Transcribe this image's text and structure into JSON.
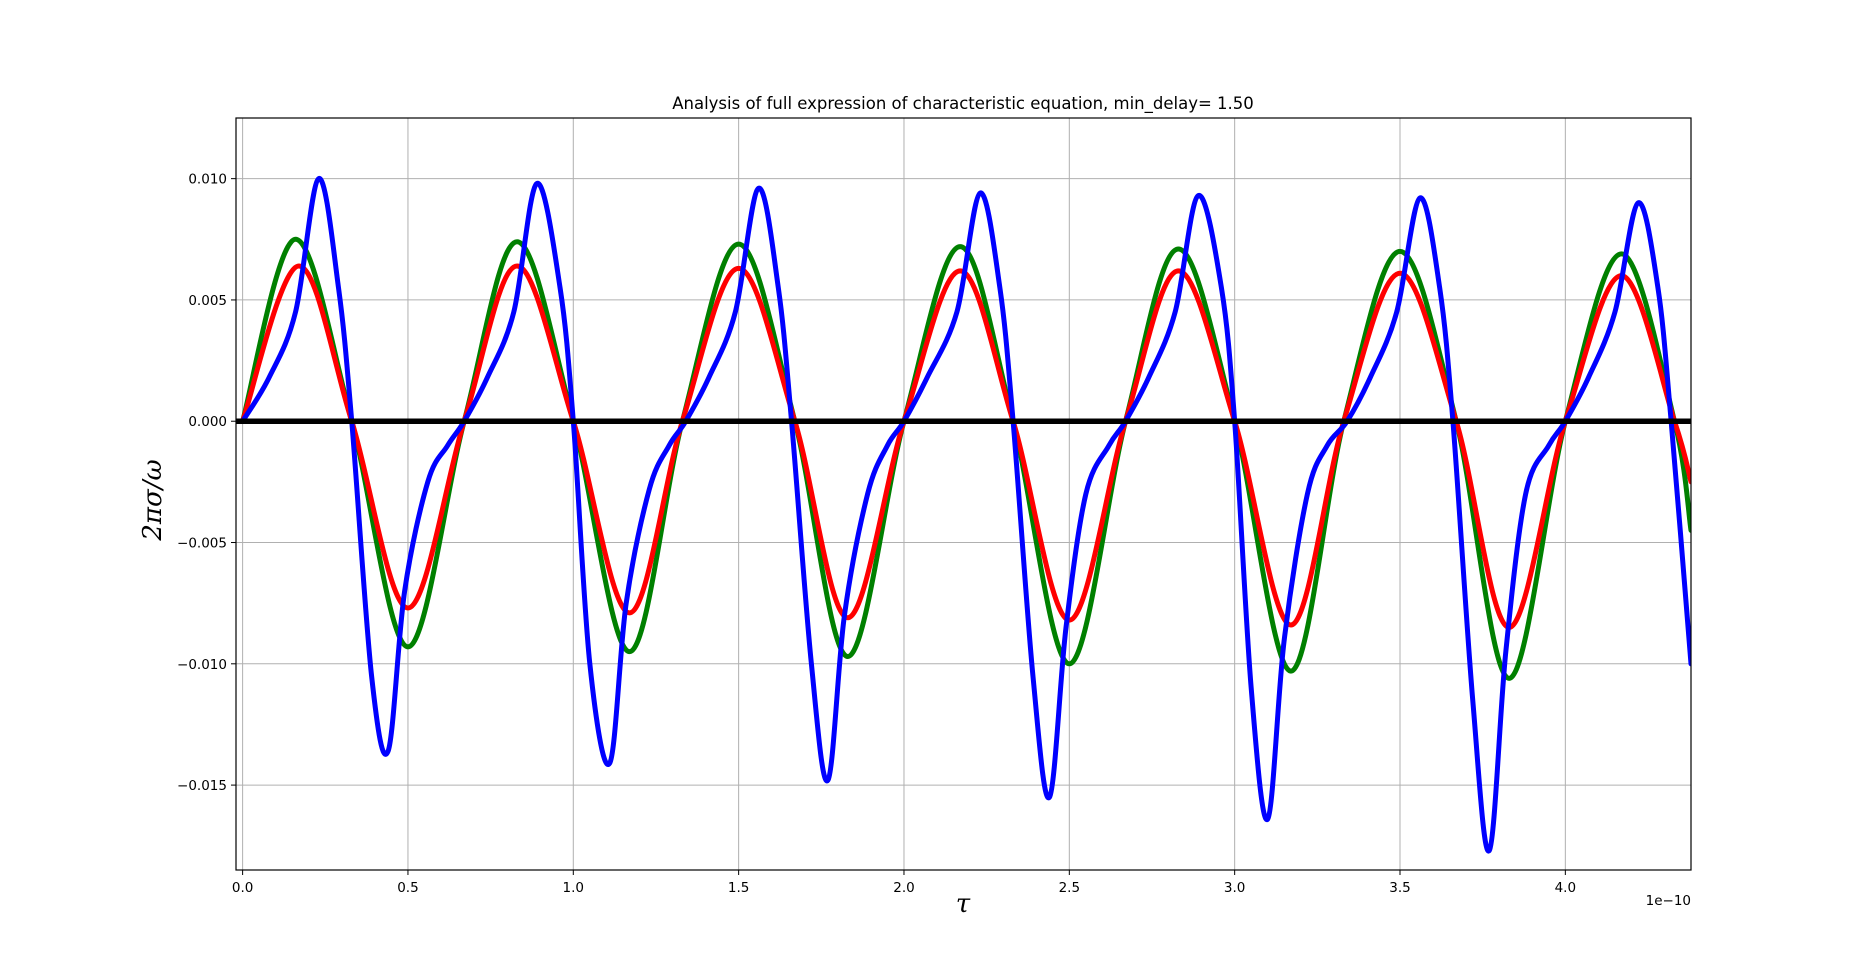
{
  "chart_data": {
    "type": "line",
    "title": "Analysis of full expression of characteristic equation, min_delay= 1.50",
    "xlabel": "τ",
    "ylabel": "2πσ/ω",
    "x_offset_label": "1e−10",
    "xlim": [
      -0.02,
      4.38
    ],
    "ylim": [
      -0.0185,
      0.0125
    ],
    "grid": true,
    "legend": "none",
    "xticks": [
      0.0,
      0.5,
      1.0,
      1.5,
      2.0,
      2.5,
      3.0,
      3.5,
      4.0
    ],
    "xtick_labels": [
      "0.0",
      "0.5",
      "1.0",
      "1.5",
      "2.0",
      "2.5",
      "3.0",
      "3.5",
      "4.0"
    ],
    "yticks": [
      0.01,
      0.005,
      0.0,
      -0.005,
      -0.01,
      -0.015
    ],
    "ytick_labels": [
      "0.010",
      "0.005",
      "0.000",
      "−0.005",
      "−0.010",
      "−0.015"
    ],
    "series": [
      {
        "color": "#008000",
        "x": [
          0.0,
          0.16,
          0.33,
          0.5,
          0.67,
          0.83,
          1.0,
          1.17,
          1.33,
          1.5,
          1.67,
          1.83,
          2.0,
          2.17,
          2.33,
          2.5,
          2.67,
          2.83,
          3.0,
          3.17,
          3.33,
          3.5,
          3.67,
          3.83,
          4.0,
          4.17,
          4.33,
          4.38
        ],
        "y": [
          0.0,
          0.0075,
          0.0,
          -0.0093,
          0.0,
          0.0074,
          0.0,
          -0.0095,
          0.0,
          0.0073,
          0.0,
          -0.0097,
          0.0,
          0.0072,
          0.0,
          -0.01,
          0.0,
          0.0071,
          0.0,
          -0.0103,
          0.0,
          0.007,
          0.0,
          -0.0106,
          0.0,
          0.0069,
          0.0,
          -0.0045
        ]
      },
      {
        "color": "#ff0000",
        "x": [
          0.0,
          0.17,
          0.33,
          0.5,
          0.67,
          0.83,
          1.0,
          1.17,
          1.33,
          1.5,
          1.67,
          1.83,
          2.0,
          2.17,
          2.33,
          2.5,
          2.67,
          2.83,
          3.0,
          3.17,
          3.33,
          3.5,
          3.67,
          3.83,
          4.0,
          4.17,
          4.33,
          4.38
        ],
        "y": [
          0.0,
          0.0064,
          0.0,
          -0.0077,
          0.0,
          0.0064,
          0.0,
          -0.0079,
          0.0,
          0.0063,
          0.0,
          -0.0081,
          0.0,
          0.0062,
          0.0,
          -0.0082,
          0.0,
          0.0062,
          0.0,
          -0.0084,
          0.0,
          0.0061,
          0.0,
          -0.0085,
          0.0,
          0.006,
          0.0,
          -0.0025
        ]
      },
      {
        "color": "#0000ff",
        "x": [
          0.0,
          0.08,
          0.16,
          0.23,
          0.29,
          0.33,
          0.39,
          0.44,
          0.49,
          0.56,
          0.62,
          0.67,
          0.74,
          0.82,
          0.89,
          0.96,
          1.0,
          1.05,
          1.11,
          1.16,
          1.23,
          1.29,
          1.34,
          1.41,
          1.49,
          1.56,
          1.62,
          1.66,
          1.72,
          1.77,
          1.82,
          1.89,
          1.95,
          2.0,
          2.07,
          2.16,
          2.23,
          2.29,
          2.33,
          2.39,
          2.44,
          2.49,
          2.55,
          2.62,
          2.67,
          2.74,
          2.82,
          2.89,
          2.96,
          3.0,
          3.05,
          3.1,
          3.15,
          3.22,
          3.28,
          3.34,
          3.41,
          3.49,
          3.56,
          3.62,
          3.66,
          3.72,
          3.77,
          3.82,
          3.88,
          3.95,
          4.0,
          4.07,
          4.15,
          4.22,
          4.28,
          4.32,
          4.38
        ],
        "y": [
          0.0,
          0.0018,
          0.0045,
          0.01,
          0.0055,
          0.0,
          -0.0105,
          -0.0136,
          -0.007,
          -0.0025,
          -0.001,
          0.0,
          0.0018,
          0.0045,
          0.0098,
          0.0055,
          0.0,
          -0.01,
          -0.0141,
          -0.0075,
          -0.0028,
          -0.001,
          0.0,
          0.0018,
          0.0045,
          0.0096,
          0.0055,
          0.0,
          -0.01,
          -0.0148,
          -0.008,
          -0.003,
          -0.001,
          0.0,
          0.0018,
          0.0045,
          0.0094,
          0.0055,
          0.0,
          -0.0105,
          -0.0155,
          -0.0085,
          -0.003,
          -0.001,
          0.0,
          0.0018,
          0.0045,
          0.0093,
          0.0055,
          0.0,
          -0.011,
          -0.0164,
          -0.009,
          -0.003,
          -0.001,
          0.0,
          0.0018,
          0.0045,
          0.0092,
          0.0055,
          0.0,
          -0.0115,
          -0.0177,
          -0.0095,
          -0.003,
          -0.001,
          0.0,
          0.0018,
          0.0045,
          0.009,
          0.0055,
          0.0,
          -0.01
        ]
      },
      {
        "color": "#000000",
        "x": [
          -0.02,
          4.38
        ],
        "y": [
          0.0,
          0.0
        ]
      }
    ]
  }
}
